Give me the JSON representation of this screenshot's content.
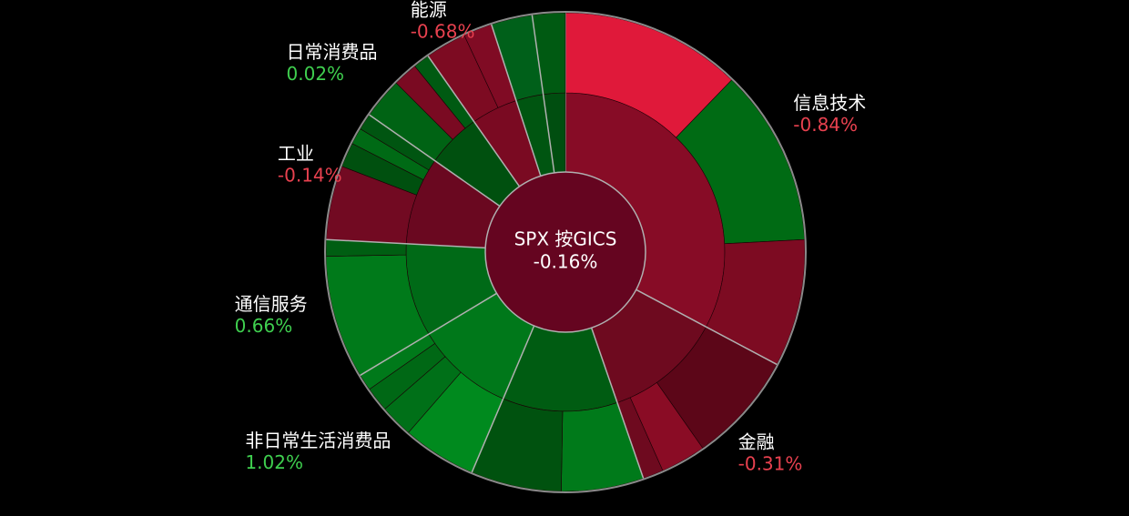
{
  "chart_data": {
    "type": "sunburst",
    "title": "SPX 按GICS",
    "total_change": "-0.16%",
    "positive_color": "#3fcf4f",
    "negative_color": "#e8414f",
    "center_color": "#650520",
    "sectors": [
      {
        "name": "信息技术",
        "change": "-0.84%",
        "weight": 118,
        "color": "#870c26",
        "children": [
          {
            "weight": 44,
            "color": "#e0193a"
          },
          {
            "weight": 43,
            "color": "#006b14"
          },
          {
            "weight": 31,
            "color": "#7d0b22"
          }
        ]
      },
      {
        "name": "金融",
        "change": "-0.31%",
        "weight": 43,
        "color": "#6e0a1f",
        "children": [
          {
            "weight": 27,
            "color": "#5c0618"
          },
          {
            "weight": 11,
            "color": "#8a0c25"
          },
          {
            "weight": 5,
            "color": "#6e0a1f"
          }
        ]
      },
      {
        "name": null,
        "change": null,
        "weight": 42,
        "color": "#005c12",
        "children": [
          {
            "weight": 20,
            "color": "#007a1a"
          },
          {
            "weight": 22,
            "color": "#00520f"
          }
        ]
      },
      {
        "name": "非日常生活消费品",
        "change": "1.02%",
        "weight": 36,
        "color": "#00781a",
        "children": [
          {
            "weight": 18,
            "color": "#008a1e"
          },
          {
            "weight": 8,
            "color": "#007018"
          },
          {
            "weight": 6,
            "color": "#006815"
          },
          {
            "weight": 4,
            "color": "#00791a"
          }
        ]
      },
      {
        "name": "通信服务",
        "change": "0.66%",
        "weight": 34,
        "color": "#006a17",
        "children": [
          {
            "weight": 30,
            "color": "#007a1a"
          },
          {
            "weight": 4,
            "color": "#005e12"
          }
        ]
      },
      {
        "name": "工业",
        "change": "-0.14%",
        "weight": 32,
        "color": "#6a0820",
        "children": [
          {
            "weight": 18,
            "color": "#720a22"
          },
          {
            "weight": 6,
            "color": "#00500f"
          },
          {
            "weight": 4,
            "color": "#006a15"
          },
          {
            "weight": 4,
            "color": "#005511"
          }
        ]
      },
      {
        "name": "日常消费品",
        "change": "0.02%",
        "weight": 20,
        "color": "#00500f",
        "children": [
          {
            "weight": 10,
            "color": "#006314"
          },
          {
            "weight": 6,
            "color": "#7a0a22"
          },
          {
            "weight": 4,
            "color": "#005a12"
          }
        ]
      },
      {
        "name": "能源",
        "change": "-0.68%",
        "weight": 17,
        "color": "#7a0a22",
        "children": [
          {
            "weight": 10,
            "color": "#7d0b22"
          },
          {
            "weight": 7,
            "color": "#800b24"
          }
        ]
      },
      {
        "name": null,
        "change": null,
        "weight": 10,
        "color": "#005511",
        "children": [
          {
            "weight": 10,
            "color": "#00601a"
          }
        ]
      },
      {
        "name": null,
        "change": null,
        "weight": 8,
        "color": "#004e10",
        "children": [
          {
            "weight": 8,
            "color": "#005a12"
          }
        ]
      }
    ]
  }
}
